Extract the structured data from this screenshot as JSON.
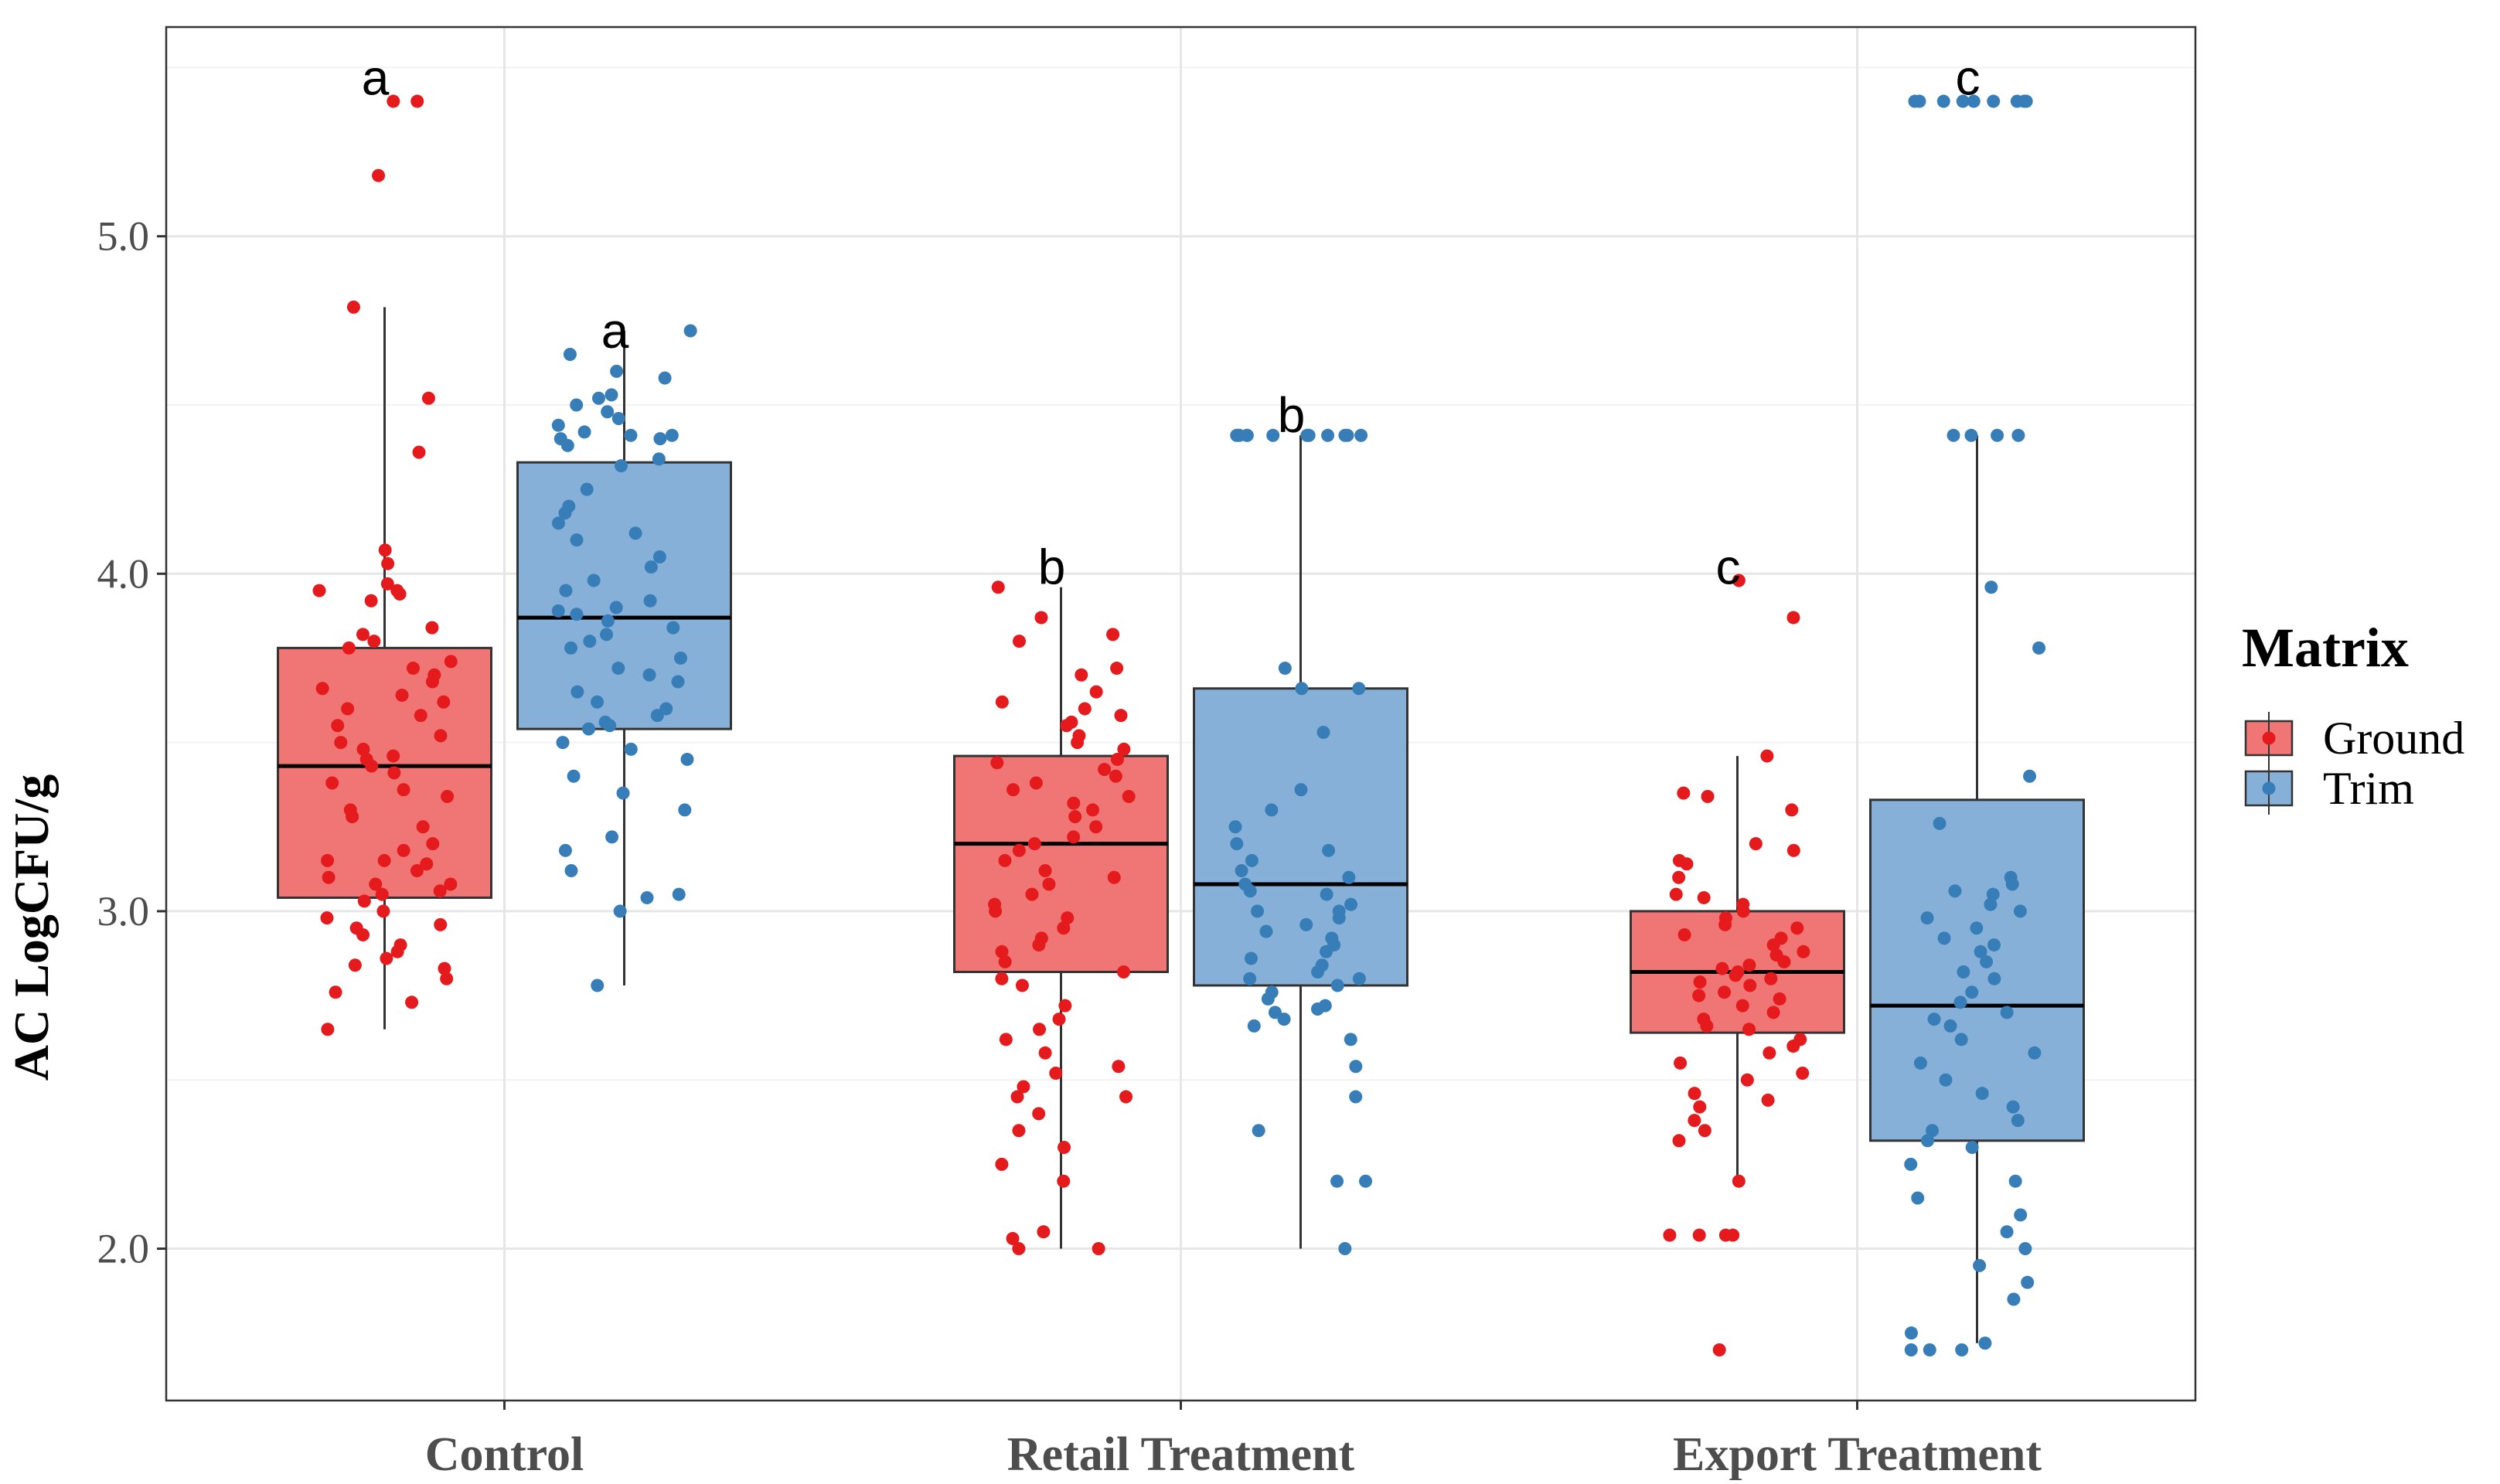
{
  "chart_data": {
    "type": "boxplot",
    "title": "",
    "xlabel": "",
    "ylabel": "AC LogCFU/g",
    "ylim": [
      1.55,
      5.62
    ],
    "yticks": [
      2.0,
      3.0,
      4.0,
      5.0
    ],
    "ytick_labels": [
      "2.0",
      "3.0",
      "4.0",
      "5.0"
    ],
    "grid": true,
    "categories": [
      "Control",
      "Retail Treatment",
      "Export Treatment"
    ],
    "legend": {
      "title": "Matrix",
      "position": "right",
      "entries": [
        {
          "name": "Ground",
          "color": "#e41a1c",
          "fill": "#f07575"
        },
        {
          "name": "Trim",
          "color": "#377eb8",
          "fill": "#86b0d7"
        }
      ]
    },
    "series": [
      {
        "name": "Ground",
        "color": "#e41a1c",
        "boxes": [
          {
            "category": "Control",
            "whisker_low": 2.65,
            "q1": 3.04,
            "median": 3.43,
            "q3": 3.78,
            "whisker_high": 4.79,
            "letter": "a",
            "letter_y": 5.47,
            "points": [
              5.4,
              5.4,
              5.18,
              4.79,
              4.52,
              4.36,
              4.07,
              4.03,
              3.97,
              3.95,
              3.95,
              3.94,
              3.92,
              3.84,
              3.82,
              3.8,
              3.78,
              3.74,
              3.72,
              3.7,
              3.68,
              3.66,
              3.64,
              3.62,
              3.6,
              3.58,
              3.55,
              3.52,
              3.5,
              3.48,
              3.46,
              3.45,
              3.43,
              3.41,
              3.38,
              3.36,
              3.34,
              3.3,
              3.28,
              3.25,
              3.2,
              3.18,
              3.15,
              3.15,
              3.14,
              3.12,
              3.1,
              3.08,
              3.08,
              3.06,
              3.05,
              3.03,
              3.0,
              2.98,
              2.96,
              2.95,
              2.93,
              2.9,
              2.88,
              2.86,
              2.84,
              2.83,
              2.8,
              2.76,
              2.73,
              2.65
            ]
          },
          {
            "category": "Retail Treatment",
            "whisker_low": 2.0,
            "q1": 2.82,
            "median": 3.2,
            "q3": 3.46,
            "whisker_high": 3.96,
            "letter": "b",
            "letter_y": 4.02,
            "points": [
              3.96,
              3.87,
              3.82,
              3.8,
              3.72,
              3.7,
              3.65,
              3.62,
              3.6,
              3.58,
              3.56,
              3.55,
              3.52,
              3.5,
              3.48,
              3.45,
              3.44,
              3.42,
              3.4,
              3.38,
              3.36,
              3.34,
              3.32,
              3.3,
              3.28,
              3.25,
              3.22,
              3.2,
              3.18,
              3.15,
              3.12,
              3.1,
              3.08,
              3.05,
              3.02,
              3.0,
              2.98,
              2.95,
              2.92,
              2.9,
              2.88,
              2.85,
              2.82,
              2.8,
              2.78,
              2.72,
              2.68,
              2.65,
              2.62,
              2.58,
              2.54,
              2.52,
              2.48,
              2.45,
              2.45,
              2.4,
              2.35,
              2.3,
              2.25,
              2.2,
              2.05,
              2.03,
              2.0,
              2.0
            ]
          },
          {
            "category": "Export Treatment",
            "whisker_low": 2.21,
            "q1": 2.64,
            "median": 2.82,
            "q3": 3.0,
            "whisker_high": 3.46,
            "letter": "c",
            "letter_y": 4.02,
            "points": [
              3.98,
              3.87,
              3.46,
              3.35,
              3.34,
              3.3,
              3.2,
              3.18,
              3.15,
              3.14,
              3.1,
              3.05,
              3.04,
              3.02,
              3.0,
              2.98,
              2.96,
              2.95,
              2.93,
              2.92,
              2.9,
              2.88,
              2.87,
              2.85,
              2.84,
              2.83,
              2.82,
              2.81,
              2.8,
              2.79,
              2.78,
              2.76,
              2.75,
              2.74,
              2.72,
              2.7,
              2.68,
              2.66,
              2.65,
              2.62,
              2.6,
              2.58,
              2.55,
              2.52,
              2.5,
              2.46,
              2.44,
              2.42,
              2.38,
              2.35,
              2.32,
              2.2,
              2.04,
              2.04,
              2.04,
              2.04,
              1.7
            ]
          }
        ]
      },
      {
        "name": "Trim",
        "color": "#377eb8",
        "boxes": [
          {
            "category": "Control",
            "whisker_low": 2.78,
            "q1": 3.54,
            "median": 3.87,
            "q3": 4.33,
            "whisker_high": 4.72,
            "letter": "a",
            "letter_y": 4.72,
            "points": [
              4.72,
              4.65,
              4.6,
              4.58,
              4.53,
              4.52,
              4.5,
              4.48,
              4.46,
              4.44,
              4.42,
              4.41,
              4.41,
              4.4,
              4.4,
              4.38,
              4.34,
              4.32,
              4.25,
              4.2,
              4.18,
              4.15,
              4.12,
              4.1,
              4.05,
              4.02,
              3.98,
              3.95,
              3.92,
              3.9,
              3.89,
              3.88,
              3.86,
              3.84,
              3.82,
              3.8,
              3.78,
              3.75,
              3.72,
              3.7,
              3.68,
              3.65,
              3.62,
              3.6,
              3.58,
              3.56,
              3.55,
              3.54,
              3.5,
              3.48,
              3.45,
              3.4,
              3.35,
              3.3,
              3.22,
              3.18,
              3.12,
              3.05,
              3.04,
              3.0,
              2.78
            ]
          },
          {
            "category": "Retail Treatment",
            "whisker_low": 2.0,
            "q1": 2.78,
            "median": 3.08,
            "q3": 3.66,
            "whisker_high": 4.41,
            "letter": "b",
            "letter_y": 4.47,
            "points": [
              4.41,
              4.41,
              4.41,
              4.41,
              4.41,
              4.41,
              4.41,
              4.41,
              4.41,
              4.41,
              4.41,
              3.72,
              3.66,
              3.66,
              3.53,
              3.36,
              3.3,
              3.25,
              3.2,
              3.18,
              3.15,
              3.12,
              3.1,
              3.08,
              3.06,
              3.05,
              3.02,
              3.0,
              3.0,
              2.98,
              2.96,
              2.94,
              2.92,
              2.9,
              2.88,
              2.86,
              2.84,
              2.82,
              2.8,
              2.8,
              2.78,
              2.76,
              2.74,
              2.72,
              2.71,
              2.7,
              2.68,
              2.66,
              2.62,
              2.54,
              2.45,
              2.35,
              2.2,
              2.2,
              2.0
            ]
          },
          {
            "category": "Export Treatment",
            "whisker_low": 1.72,
            "q1": 2.32,
            "median": 2.72,
            "q3": 3.33,
            "whisker_high": 4.41,
            "letter": "c",
            "letter_y": 5.47,
            "points": [
              5.4,
              5.4,
              5.4,
              5.4,
              5.4,
              5.4,
              5.4,
              5.4,
              5.4,
              4.41,
              4.41,
              4.41,
              4.41,
              3.96,
              3.78,
              3.4,
              3.26,
              3.1,
              3.08,
              3.06,
              3.05,
              3.02,
              3.0,
              2.98,
              2.95,
              2.92,
              2.9,
              2.88,
              2.85,
              2.82,
              2.8,
              2.76,
              2.73,
              2.7,
              2.68,
              2.66,
              2.62,
              2.58,
              2.55,
              2.5,
              2.46,
              2.42,
              2.38,
              2.35,
              2.32,
              2.3,
              2.25,
              2.2,
              2.15,
              2.1,
              2.05,
              2.0,
              1.95,
              1.9,
              1.85,
              1.75,
              1.72,
              1.7,
              1.7,
              1.7
            ]
          }
        ]
      }
    ]
  }
}
